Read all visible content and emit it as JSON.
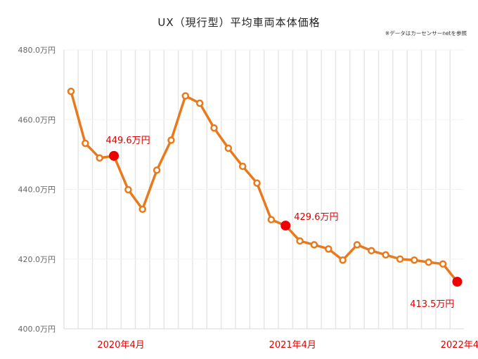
{
  "chart_data": {
    "type": "line",
    "title": "UX（現行型）平均車両本体価格",
    "note": "※データはカーセンサーnetを参照",
    "xlabel": "",
    "ylabel": "",
    "ylim": [
      400.0,
      480.0
    ],
    "y_ticks": [
      "400.0万円",
      "420.0万円",
      "440.0万円",
      "460.0万円",
      "480.0万円"
    ],
    "y_tick_values": [
      400,
      420,
      440,
      460,
      480
    ],
    "x_tick_labels": [
      {
        "label": "2020年4月",
        "index": 3
      },
      {
        "label": "2021年4月",
        "index": 15
      },
      {
        "label": "2022年4月",
        "index": 27
      }
    ],
    "grid": {
      "vertical": true,
      "horizontal": true
    },
    "colors": {
      "line": "#e87a1c",
      "highlight": "#ee0000",
      "label": "#e00000",
      "grid": "#e6e6e6"
    },
    "series": [
      {
        "values": [
          468.1,
          453.2,
          449.0,
          449.6,
          439.9,
          434.3,
          445.5,
          454.1,
          466.8,
          464.7,
          457.6,
          451.8,
          446.6,
          441.8,
          431.3,
          429.6,
          425.2,
          424.1,
          422.9,
          419.7,
          424.1,
          422.4,
          421.2,
          420.0,
          419.7,
          419.1,
          418.6,
          413.5
        ]
      }
    ],
    "highlighted_points": [
      {
        "index": 3,
        "label": "449.6万円"
      },
      {
        "index": 15,
        "label": "429.6万円"
      },
      {
        "index": 27,
        "label": "413.5万円"
      }
    ]
  }
}
